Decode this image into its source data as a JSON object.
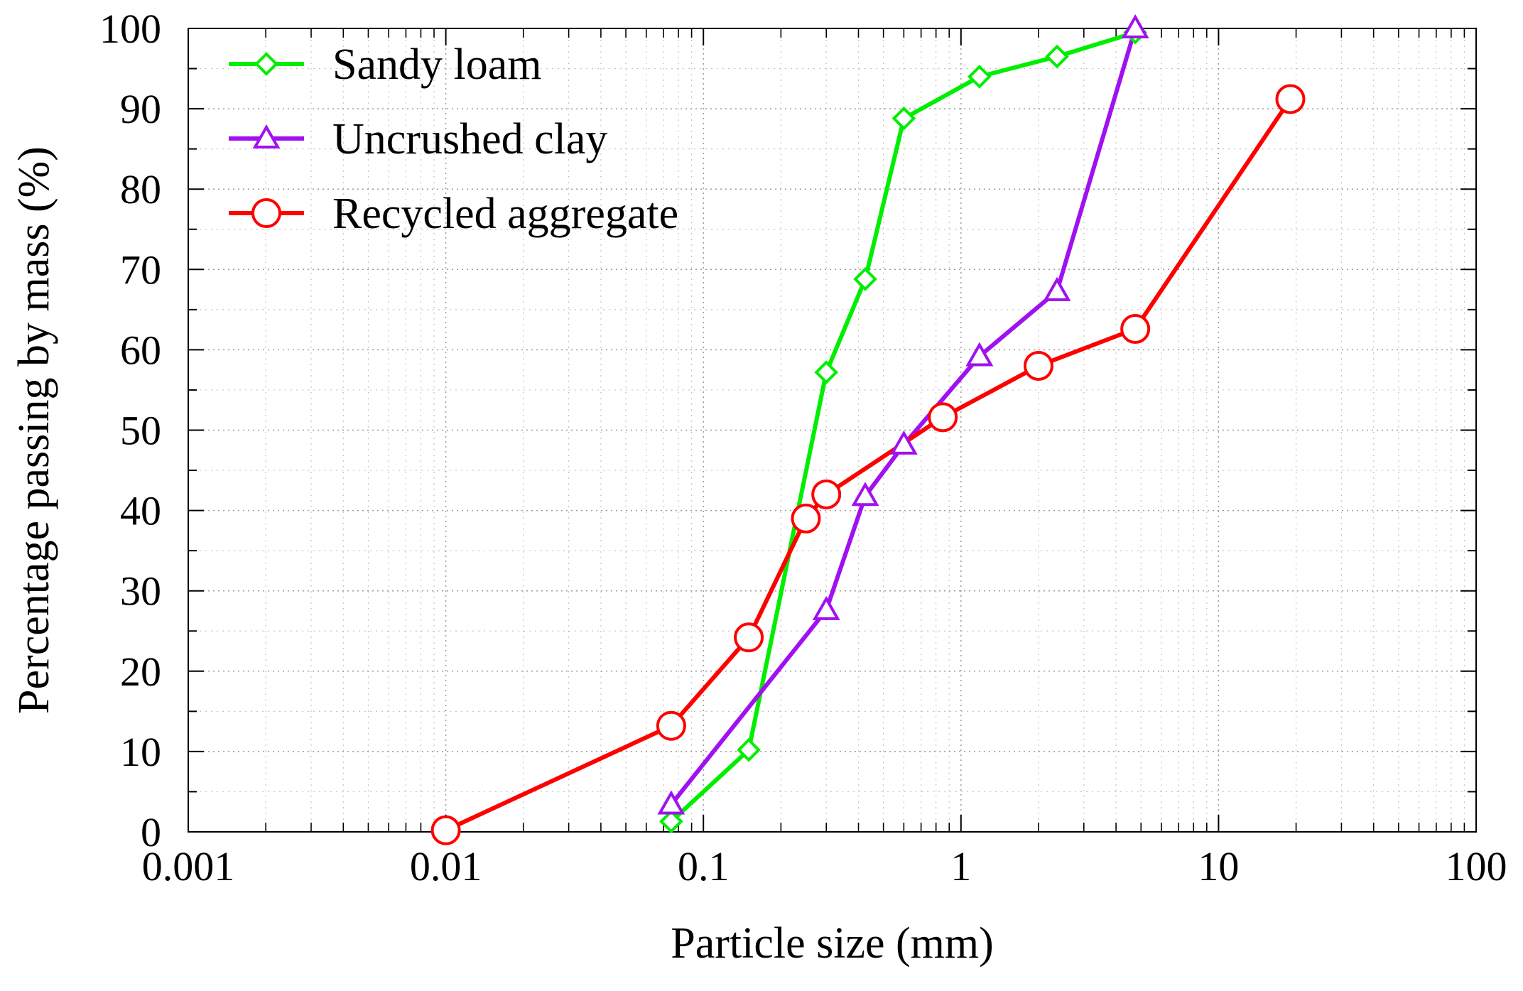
{
  "chart_data": {
    "type": "line",
    "xscale": "log",
    "xlabel": "Particle size (mm)",
    "ylabel": "Percentage passing by mass (%)",
    "xlim": [
      0.001,
      100
    ],
    "ylim": [
      0,
      100
    ],
    "x_ticks": [
      0.001,
      0.01,
      0.1,
      1,
      10,
      100
    ],
    "x_tick_labels": [
      "0.001",
      "0.01",
      "0.1",
      "1",
      "10",
      "100"
    ],
    "y_ticks": [
      0,
      10,
      20,
      30,
      40,
      50,
      60,
      70,
      80,
      90,
      100
    ],
    "y_tick_labels": [
      "0",
      "10",
      "20",
      "30",
      "40",
      "50",
      "60",
      "70",
      "80",
      "90",
      "100"
    ],
    "grid": true,
    "legend_position": "top-left",
    "series": [
      {
        "name": "Sandy loam",
        "color": "#00ee00",
        "marker": "diamond",
        "x": [
          0.075,
          0.15,
          0.3,
          0.425,
          0.6,
          1.18,
          2.36,
          4.75
        ],
        "y": [
          1.3,
          10.2,
          57.2,
          68.8,
          88.8,
          94.0,
          96.5,
          99.5
        ]
      },
      {
        "name": "Uncrushed clay",
        "color": "#a010f0",
        "marker": "triangle",
        "x": [
          0.075,
          0.3,
          0.425,
          0.6,
          1.18,
          2.36,
          4.75
        ],
        "y": [
          3.4,
          27.6,
          41.8,
          48.2,
          59.2,
          67.3,
          100
        ]
      },
      {
        "name": "Recycled aggregate",
        "color": "#ff0000",
        "marker": "circle",
        "x": [
          0.01,
          0.075,
          0.15,
          0.25,
          0.3,
          0.85,
          2.0,
          4.75,
          19.0
        ],
        "y": [
          0.2,
          13.2,
          24.2,
          39.0,
          42.0,
          51.6,
          58.0,
          62.6,
          91.2
        ]
      }
    ]
  }
}
